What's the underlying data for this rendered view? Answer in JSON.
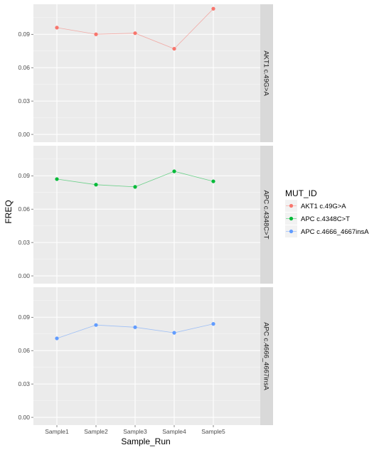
{
  "chart_data": {
    "type": "line",
    "facet_by": "MUT_ID",
    "x_categories": [
      "Sample1",
      "Sample2",
      "Sample3",
      "Sample4",
      "Sample5"
    ],
    "xlabel": "Sample_Run",
    "ylabel": "FREQ",
    "ylim": [
      -0.007,
      0.117
    ],
    "yticks": [
      "0.00",
      "0.03",
      "0.06",
      "0.09"
    ],
    "grid": true,
    "legend": {
      "title": "MUT_ID",
      "position": "right",
      "entries": [
        "AKT1 c.49G>A",
        "APC c.4348C>T",
        "APC c.4666_4667insA"
      ]
    },
    "series": [
      {
        "name": "AKT1 c.49G>A",
        "strip_label": "AKT1 c.49G>A",
        "color": "#F8766D",
        "values": [
          0.096,
          0.09,
          0.091,
          0.077,
          0.113
        ]
      },
      {
        "name": "APC c.4348C>T",
        "strip_label": "APC c.4348C>T",
        "color": "#00BA38",
        "values": [
          0.087,
          0.082,
          0.08,
          0.094,
          0.085
        ]
      },
      {
        "name": "APC c.4666_4667insA",
        "strip_label": "APC c.4666_4667insA",
        "color": "#619CFF",
        "values": [
          0.071,
          0.083,
          0.081,
          0.076,
          0.084
        ]
      }
    ]
  }
}
